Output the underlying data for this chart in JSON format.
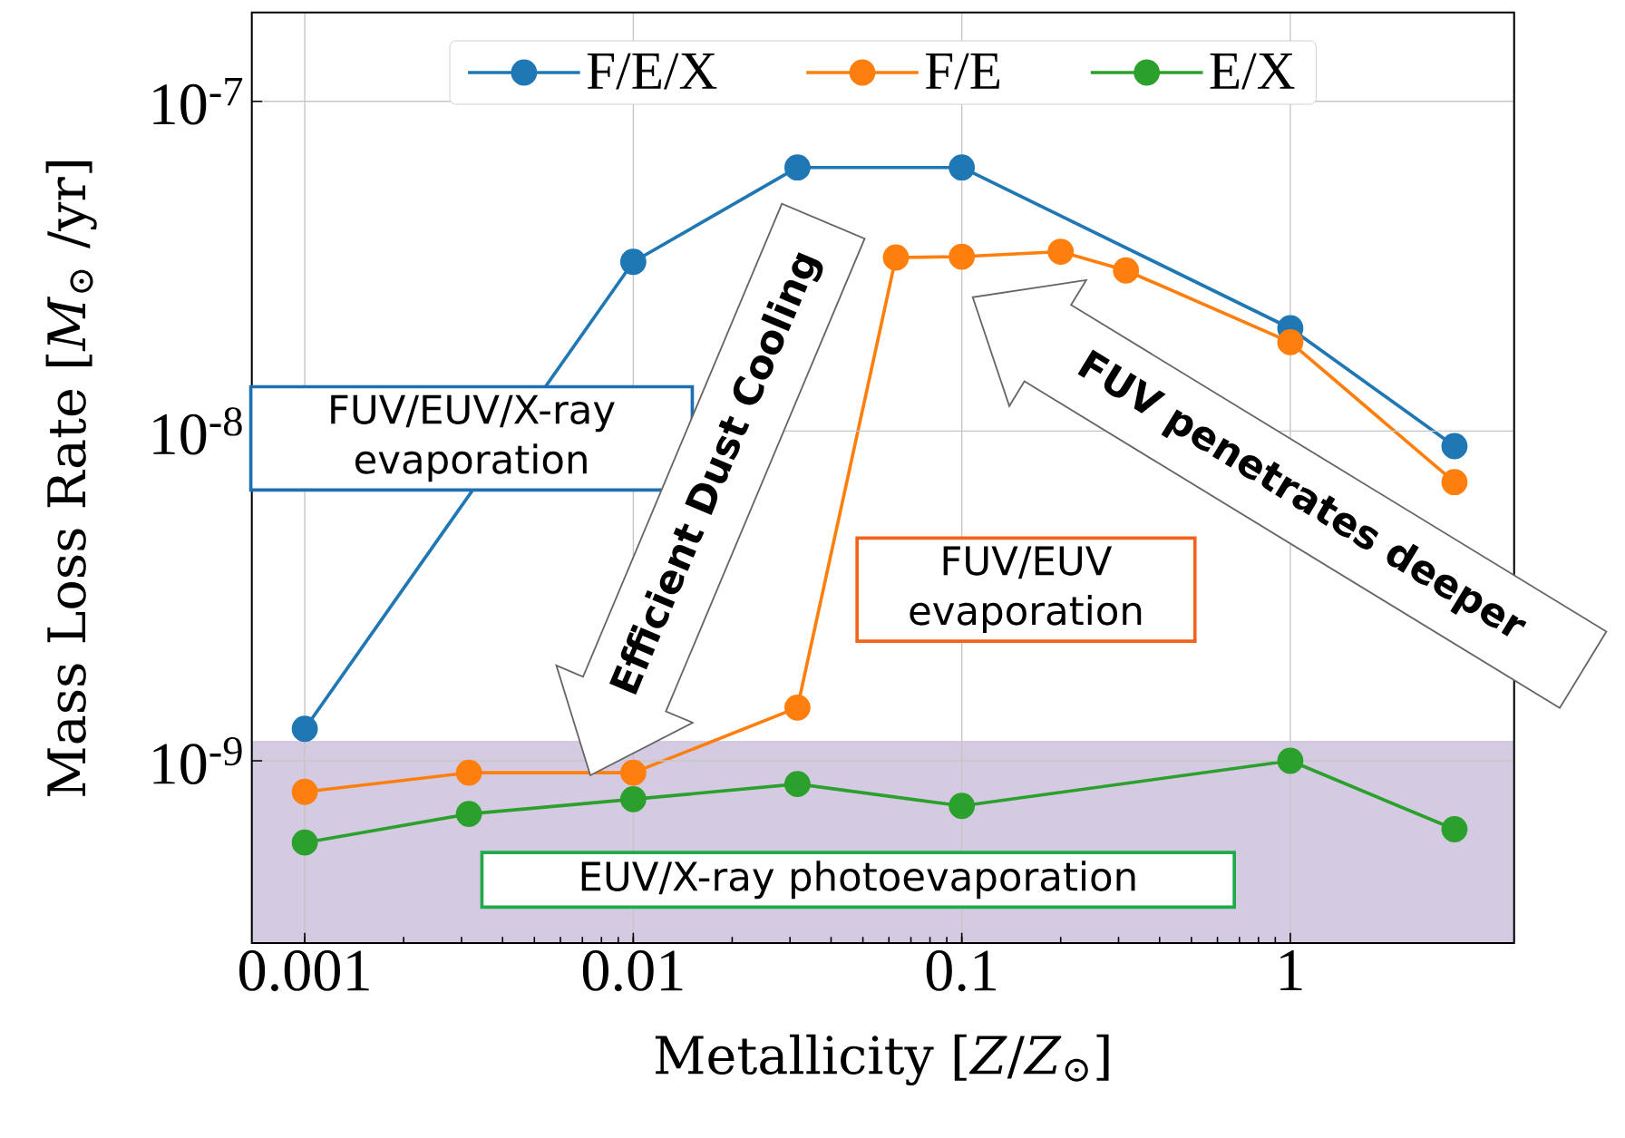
{
  "chart_data": {
    "type": "line",
    "xlabel": "Metallicity [*Z*/*Z*$_{⊙}$]",
    "ylabel": "Mass Loss Rate [*M*$_{⊙}$ /yr]",
    "log": "xy",
    "xlim": [
      0.00069,
      4.8
    ],
    "ylim": [
      2.8e-10,
      1.86e-07
    ],
    "xticks": [
      0.001,
      0.01,
      0.1,
      1
    ],
    "yticks": [
      {
        "value": 1e-09,
        "label": "10$^{-9}$"
      },
      {
        "value": 1e-08,
        "label": "10$^{-8}$"
      },
      {
        "value": 1e-07,
        "label": "10$^{-7}$"
      }
    ],
    "grid": true,
    "legend": "top",
    "marker": "circle",
    "series": [
      {
        "name": "F/E/X",
        "color": "#1f77b4",
        "x": [
          0.001,
          0.01,
          0.0316,
          0.1,
          1,
          3.16
        ],
        "values": [
          1.25e-09,
          3.26e-08,
          6.3e-08,
          6.3e-08,
          2.05e-08,
          9e-09
        ]
      },
      {
        "name": "F/E",
        "color": "#ff7f0e",
        "x": [
          0.001,
          0.00316,
          0.01,
          0.0316,
          0.063,
          0.1,
          0.2,
          0.316,
          1,
          3.16
        ],
        "values": [
          8.05e-10,
          9.2e-10,
          9.2e-10,
          1.45e-09,
          3.36e-08,
          3.38e-08,
          3.5e-08,
          3.07e-08,
          1.86e-08,
          7e-09
        ]
      },
      {
        "name": "E/X",
        "color": "#2ca02c",
        "x": [
          0.001,
          0.00316,
          0.01,
          0.0316,
          0.1,
          1,
          3.16
        ],
        "values": [
          5.65e-10,
          6.9e-10,
          7.65e-10,
          8.5e-10,
          7.3e-10,
          1e-09,
          6.2e-10
        ]
      }
    ],
    "bands": [
      {
        "axis": "y",
        "from": 2.8e-10,
        "to": 1.15e-09,
        "color": "#d4cbe3"
      }
    ],
    "annotations": [
      "FUV/EUV/X-ray evaporation",
      "Efficient Dust Cooling",
      "FUV/EUV evaporation",
      "FUV penetrates deeper",
      "EUV/X-ray photoevaporation"
    ]
  }
}
